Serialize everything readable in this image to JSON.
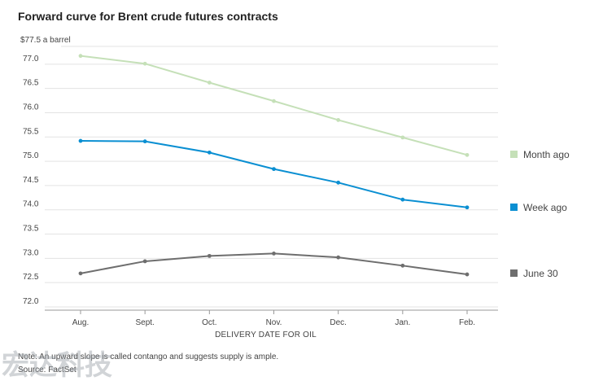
{
  "title": "Forward curve for Brent crude futures contracts",
  "unit_label": "$77.5 a barrel",
  "note": "Note: An upward slope is called contango and suggests supply is ample.",
  "source": "Source: FactSet",
  "watermark_text": "宏达科技",
  "colors": {
    "month_ago": "#c5e0b8",
    "week_ago": "#0a8fd2",
    "june_30": "#6e6e6e",
    "grid": "#e3e3e3"
  },
  "chart_data": {
    "type": "line",
    "title": "Forward curve for Brent crude futures contracts",
    "xlabel": "DELIVERY DATE FOR OIL",
    "ylabel": "$77.5 a barrel",
    "categories": [
      "Aug.",
      "Sept.",
      "Oct.",
      "Nov.",
      "Dec.",
      "Jan.",
      "Feb."
    ],
    "ylim": [
      72.0,
      77.5
    ],
    "yticks": [
      "72.0",
      "72.5",
      "73.0",
      "73.5",
      "74.0",
      "74.5",
      "75.0",
      "75.5",
      "76.0",
      "76.5",
      "77.0"
    ],
    "grid": true,
    "legend_position": "right",
    "series": [
      {
        "name": "Month ago",
        "color": "#c5e0b8",
        "values": [
          77.17,
          77.01,
          76.62,
          76.24,
          75.85,
          75.49,
          75.13
        ]
      },
      {
        "name": "Week ago",
        "color": "#0a8fd2",
        "values": [
          75.42,
          75.41,
          75.18,
          74.84,
          74.56,
          74.21,
          74.05
        ]
      },
      {
        "name": "June 30",
        "color": "#6e6e6e",
        "values": [
          72.69,
          72.94,
          73.05,
          73.1,
          73.02,
          72.85,
          72.67
        ]
      }
    ]
  }
}
